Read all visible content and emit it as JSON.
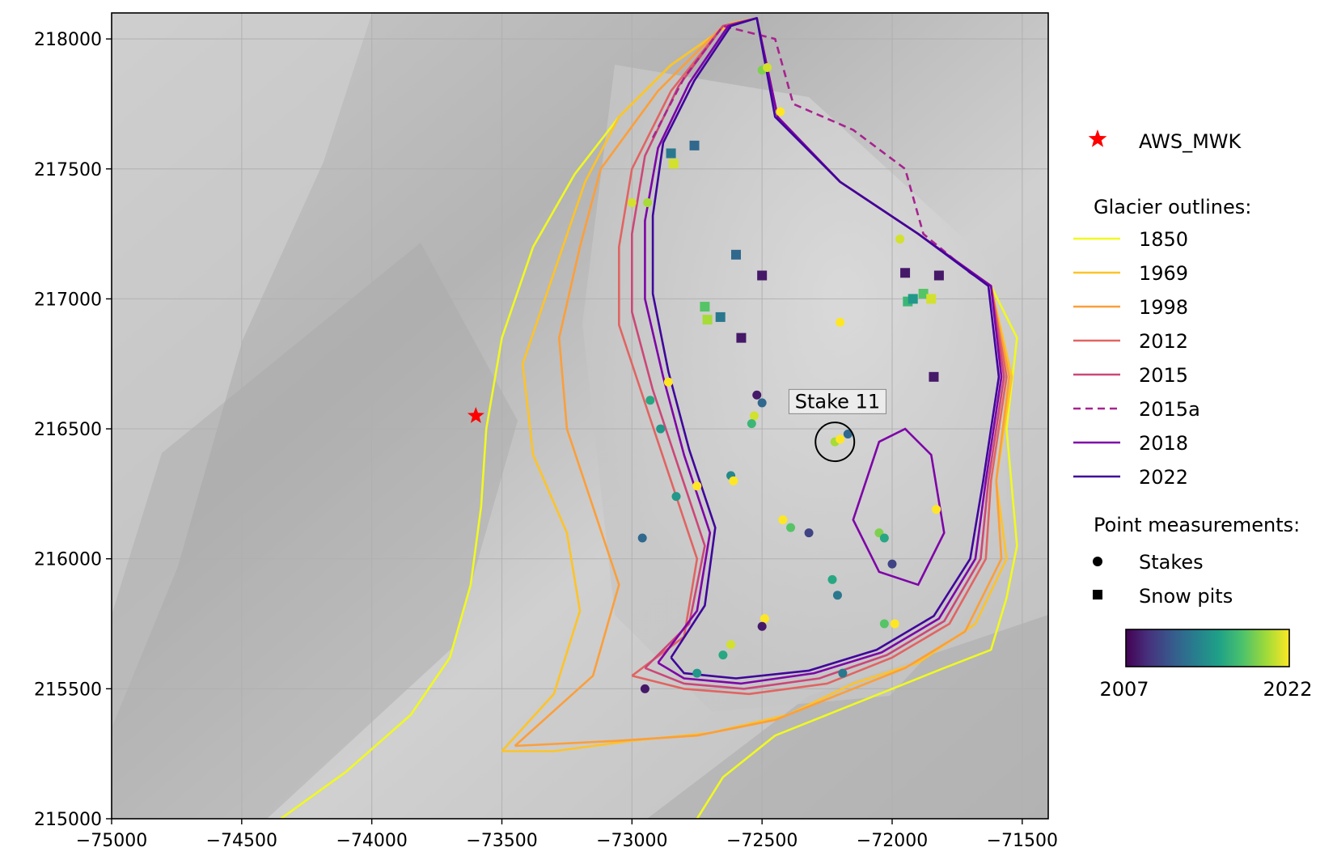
{
  "chart_data": {
    "type": "map",
    "xlim": [
      -75000,
      -71400
    ],
    "ylim": [
      215000,
      218100
    ],
    "x_ticks": [
      -75000,
      -74500,
      -74000,
      -73500,
      -73000,
      -72500,
      -72000,
      -71500
    ],
    "x_tick_labels": [
      "−75000",
      "−74500",
      "−74000",
      "−73500",
      "−73000",
      "−72500",
      "−72000",
      "−71500"
    ],
    "y_ticks": [
      215000,
      215500,
      216000,
      216500,
      217000,
      217500,
      218000
    ],
    "y_tick_labels": [
      "215000",
      "215500",
      "216000",
      "216500",
      "217000",
      "217500",
      "218000"
    ],
    "grid": true,
    "background": "grayscale hillshade relief",
    "aws": {
      "label": "AWS_MWK",
      "x": -73600,
      "y": 216550,
      "color": "#ff0000",
      "icon": "star-icon"
    },
    "annotation": {
      "text": "Stake 11",
      "x": -72220,
      "y": 216450,
      "label_x": -72210,
      "label_y": 216580
    },
    "legend_titles": {
      "outlines": "Glacier outlines:",
      "points": "Point measurements:"
    },
    "outlines": [
      {
        "name": "1850",
        "color": "#f0f921",
        "dash": false,
        "points": [
          [
            -74350,
            215000
          ],
          [
            -74100,
            215180
          ],
          [
            -73850,
            215400
          ],
          [
            -73700,
            215620
          ],
          [
            -73620,
            215900
          ],
          [
            -73580,
            216200
          ],
          [
            -73560,
            216500
          ],
          [
            -73500,
            216850
          ],
          [
            -73380,
            217200
          ],
          [
            -73220,
            217480
          ],
          [
            -73050,
            217700
          ],
          [
            -72850,
            217900
          ],
          [
            -72620,
            218060
          ],
          [
            -72520,
            218080
          ],
          [
            -72440,
            217700
          ],
          [
            -72200,
            217450
          ],
          [
            -71900,
            217250
          ],
          [
            -71620,
            217050
          ],
          [
            -71520,
            216850
          ],
          [
            -71560,
            216500
          ],
          [
            -71520,
            216050
          ],
          [
            -71560,
            215850
          ],
          [
            -71620,
            215650
          ],
          [
            -71800,
            215580
          ],
          [
            -72000,
            215500
          ],
          [
            -72200,
            215420
          ],
          [
            -72450,
            215320
          ],
          [
            -72650,
            215160
          ],
          [
            -72750,
            215000
          ]
        ]
      },
      {
        "name": "1969",
        "color": "#fdc328",
        "dash": false,
        "points": [
          [
            -73500,
            215260
          ],
          [
            -73300,
            215480
          ],
          [
            -73200,
            215800
          ],
          [
            -73250,
            216100
          ],
          [
            -73380,
            216400
          ],
          [
            -73420,
            216750
          ],
          [
            -73300,
            217100
          ],
          [
            -73180,
            217450
          ],
          [
            -73050,
            217700
          ],
          [
            -72850,
            217900
          ],
          [
            -72620,
            218060
          ],
          [
            -72520,
            218080
          ],
          [
            -72440,
            217700
          ],
          [
            -72200,
            217450
          ],
          [
            -71900,
            217250
          ],
          [
            -71620,
            217050
          ],
          [
            -71540,
            216700
          ],
          [
            -71600,
            216300
          ],
          [
            -71560,
            216000
          ],
          [
            -71680,
            215750
          ],
          [
            -71900,
            215600
          ],
          [
            -72150,
            215520
          ],
          [
            -72400,
            215400
          ],
          [
            -72700,
            215330
          ],
          [
            -73000,
            215300
          ],
          [
            -73300,
            215260
          ],
          [
            -73500,
            215260
          ]
        ]
      },
      {
        "name": "1998",
        "color": "#fb9f3a",
        "dash": false,
        "points": [
          [
            -73450,
            215280
          ],
          [
            -73150,
            215550
          ],
          [
            -73050,
            215900
          ],
          [
            -73150,
            216200
          ],
          [
            -73250,
            216500
          ],
          [
            -73280,
            216850
          ],
          [
            -73200,
            217200
          ],
          [
            -73120,
            217500
          ],
          [
            -72900,
            217800
          ],
          [
            -72650,
            218050
          ],
          [
            -72520,
            218080
          ],
          [
            -72440,
            217700
          ],
          [
            -72200,
            217450
          ],
          [
            -71900,
            217250
          ],
          [
            -71620,
            217050
          ],
          [
            -71550,
            216700
          ],
          [
            -71600,
            216300
          ],
          [
            -71580,
            216000
          ],
          [
            -71720,
            215720
          ],
          [
            -71950,
            215580
          ],
          [
            -72200,
            215480
          ],
          [
            -72450,
            215380
          ],
          [
            -72750,
            215320
          ],
          [
            -73050,
            215300
          ],
          [
            -73450,
            215280
          ]
        ]
      },
      {
        "name": "2012",
        "color": "#e16462",
        "dash": false,
        "points": [
          [
            -73000,
            215550
          ],
          [
            -72800,
            215700
          ],
          [
            -72750,
            216000
          ],
          [
            -72850,
            216300
          ],
          [
            -72950,
            216600
          ],
          [
            -73050,
            216900
          ],
          [
            -73050,
            217200
          ],
          [
            -73000,
            217500
          ],
          [
            -72850,
            217800
          ],
          [
            -72650,
            218050
          ],
          [
            -72520,
            218080
          ],
          [
            -72440,
            217700
          ],
          [
            -72200,
            217450
          ],
          [
            -71900,
            217250
          ],
          [
            -71620,
            217050
          ],
          [
            -71560,
            216700
          ],
          [
            -71620,
            216300
          ],
          [
            -71640,
            216000
          ],
          [
            -71780,
            215750
          ],
          [
            -72000,
            215620
          ],
          [
            -72250,
            215520
          ],
          [
            -72550,
            215480
          ],
          [
            -72800,
            215500
          ],
          [
            -73000,
            215550
          ]
        ]
      },
      {
        "name": "2015",
        "color": "#cc4778",
        "dash": false,
        "points": [
          [
            -72950,
            215580
          ],
          [
            -72780,
            215750
          ],
          [
            -72720,
            216050
          ],
          [
            -72820,
            216350
          ],
          [
            -72920,
            216650
          ],
          [
            -73000,
            216950
          ],
          [
            -73000,
            217250
          ],
          [
            -72950,
            217550
          ],
          [
            -72820,
            217820
          ],
          [
            -72650,
            218050
          ],
          [
            -72520,
            218080
          ],
          [
            -72440,
            217700
          ],
          [
            -72200,
            217450
          ],
          [
            -71900,
            217250
          ],
          [
            -71620,
            217050
          ],
          [
            -71570,
            216700
          ],
          [
            -71630,
            216300
          ],
          [
            -71660,
            216000
          ],
          [
            -71800,
            215760
          ],
          [
            -72020,
            215630
          ],
          [
            -72280,
            215540
          ],
          [
            -72570,
            215500
          ],
          [
            -72800,
            215520
          ],
          [
            -72950,
            215580
          ]
        ]
      },
      {
        "name": "2015a",
        "color": "#a7238f",
        "dash": true,
        "points": [
          [
            -72920,
            217620
          ],
          [
            -72800,
            217850
          ],
          [
            -72650,
            218050
          ],
          [
            -72450,
            218000
          ],
          [
            -72380,
            217750
          ],
          [
            -72150,
            217650
          ],
          [
            -71950,
            217500
          ],
          [
            -71880,
            217250
          ],
          [
            -71700,
            217100
          ],
          [
            -71620,
            217050
          ]
        ]
      },
      {
        "name": "2018",
        "color": "#7e03a8",
        "dash": false,
        "points": [
          [
            -72900,
            215600
          ],
          [
            -72750,
            215800
          ],
          [
            -72700,
            216100
          ],
          [
            -72800,
            216400
          ],
          [
            -72880,
            216700
          ],
          [
            -72950,
            217000
          ],
          [
            -72950,
            217300
          ],
          [
            -72900,
            217580
          ],
          [
            -72780,
            217830
          ],
          [
            -72630,
            218050
          ],
          [
            -72520,
            218080
          ],
          [
            -72440,
            217700
          ],
          [
            -72200,
            217450
          ],
          [
            -71900,
            217250
          ],
          [
            -71620,
            217050
          ],
          [
            -71580,
            216700
          ],
          [
            -71640,
            216300
          ],
          [
            -71680,
            216000
          ],
          [
            -71820,
            215770
          ],
          [
            -72040,
            215640
          ],
          [
            -72300,
            215560
          ],
          [
            -72580,
            215520
          ],
          [
            -72800,
            215540
          ],
          [
            -72900,
            215600
          ]
        ]
      },
      {
        "name": "2022",
        "color": "#3f049c",
        "dash": false,
        "points": [
          [
            -72850,
            215620
          ],
          [
            -72720,
            215820
          ],
          [
            -72680,
            216120
          ],
          [
            -72780,
            216420
          ],
          [
            -72860,
            216720
          ],
          [
            -72920,
            217020
          ],
          [
            -72920,
            217320
          ],
          [
            -72880,
            217600
          ],
          [
            -72760,
            217840
          ],
          [
            -72620,
            218050
          ],
          [
            -72520,
            218080
          ],
          [
            -72450,
            217700
          ],
          [
            -72200,
            217450
          ],
          [
            -71900,
            217250
          ],
          [
            -71630,
            217050
          ],
          [
            -71590,
            216700
          ],
          [
            -71650,
            216300
          ],
          [
            -71700,
            216000
          ],
          [
            -71840,
            215780
          ],
          [
            -72060,
            215650
          ],
          [
            -72320,
            215570
          ],
          [
            -72600,
            215540
          ],
          [
            -72800,
            215560
          ],
          [
            -72850,
            215620
          ]
        ]
      }
    ],
    "nunatak_outline": {
      "color": "#7e03a8",
      "points": [
        [
          -72150,
          216150
        ],
        [
          -72050,
          216450
        ],
        [
          -71950,
          216500
        ],
        [
          -71850,
          216400
        ],
        [
          -71800,
          216100
        ],
        [
          -71900,
          215900
        ],
        [
          -72050,
          215950
        ],
        [
          -72150,
          216150
        ]
      ]
    },
    "points_legend": [
      {
        "label": "Stakes",
        "marker": "circle"
      },
      {
        "label": "Snow pits",
        "marker": "square"
      }
    ],
    "colorbar": {
      "min_label": "2007",
      "max_label": "2022",
      "colormap": "viridis"
    },
    "stakes": [
      {
        "x": -72500,
        "y": 217880,
        "year": 2019
      },
      {
        "x": -72480,
        "y": 217890,
        "year": 2021
      },
      {
        "x": -72430,
        "y": 217720,
        "year": 2022
      },
      {
        "x": -73000,
        "y": 217370,
        "year": 2021
      },
      {
        "x": -72940,
        "y": 217370,
        "year": 2020
      },
      {
        "x": -71970,
        "y": 217230,
        "year": 2021
      },
      {
        "x": -72200,
        "y": 216910,
        "year": 2022
      },
      {
        "x": -72860,
        "y": 216680,
        "year": 2022
      },
      {
        "x": -72930,
        "y": 216610,
        "year": 2016
      },
      {
        "x": -72520,
        "y": 216630,
        "year": 2008
      },
      {
        "x": -72500,
        "y": 216600,
        "year": 2012
      },
      {
        "x": -72530,
        "y": 216550,
        "year": 2021
      },
      {
        "x": -72540,
        "y": 216520,
        "year": 2017
      },
      {
        "x": -72890,
        "y": 216500,
        "year": 2015
      },
      {
        "x": -72220,
        "y": 216450,
        "year": 2020
      },
      {
        "x": -72200,
        "y": 216460,
        "year": 2022
      },
      {
        "x": -72170,
        "y": 216480,
        "year": 2012
      },
      {
        "x": -72620,
        "y": 216320,
        "year": 2014
      },
      {
        "x": -72610,
        "y": 216300,
        "year": 2022
      },
      {
        "x": -72750,
        "y": 216280,
        "year": 2022
      },
      {
        "x": -72830,
        "y": 216240,
        "year": 2015
      },
      {
        "x": -72420,
        "y": 216150,
        "year": 2022
      },
      {
        "x": -72390,
        "y": 216120,
        "year": 2018
      },
      {
        "x": -72320,
        "y": 216100,
        "year": 2010
      },
      {
        "x": -72050,
        "y": 216100,
        "year": 2019
      },
      {
        "x": -72030,
        "y": 216080,
        "year": 2016
      },
      {
        "x": -71830,
        "y": 216190,
        "year": 2022
      },
      {
        "x": -72000,
        "y": 215980,
        "year": 2010
      },
      {
        "x": -72230,
        "y": 215920,
        "year": 2016
      },
      {
        "x": -72210,
        "y": 215860,
        "year": 2013
      },
      {
        "x": -72490,
        "y": 215770,
        "year": 2022
      },
      {
        "x": -72500,
        "y": 215740,
        "year": 2008
      },
      {
        "x": -72030,
        "y": 215750,
        "year": 2018
      },
      {
        "x": -71990,
        "y": 215750,
        "year": 2022
      },
      {
        "x": -72620,
        "y": 215670,
        "year": 2021
      },
      {
        "x": -72650,
        "y": 215630,
        "year": 2016
      },
      {
        "x": -72950,
        "y": 215500,
        "year": 2008
      },
      {
        "x": -72750,
        "y": 215560,
        "year": 2015
      },
      {
        "x": -72190,
        "y": 215560,
        "year": 2013
      },
      {
        "x": -72960,
        "y": 216080,
        "year": 2012
      }
    ],
    "snow_pits": [
      {
        "x": -72850,
        "y": 217560,
        "year": 2013
      },
      {
        "x": -72840,
        "y": 217520,
        "year": 2021
      },
      {
        "x": -72760,
        "y": 217590,
        "year": 2012
      },
      {
        "x": -72600,
        "y": 217170,
        "year": 2012
      },
      {
        "x": -72500,
        "y": 217090,
        "year": 2008
      },
      {
        "x": -71950,
        "y": 217100,
        "year": 2008
      },
      {
        "x": -71820,
        "y": 217090,
        "year": 2008
      },
      {
        "x": -72720,
        "y": 216970,
        "year": 2018
      },
      {
        "x": -72710,
        "y": 216920,
        "year": 2020
      },
      {
        "x": -72660,
        "y": 216930,
        "year": 2013
      },
      {
        "x": -71940,
        "y": 216990,
        "year": 2017
      },
      {
        "x": -71920,
        "y": 217000,
        "year": 2015
      },
      {
        "x": -71880,
        "y": 217020,
        "year": 2018
      },
      {
        "x": -71850,
        "y": 217000,
        "year": 2021
      },
      {
        "x": -72580,
        "y": 216850,
        "year": 2008
      },
      {
        "x": -71840,
        "y": 216700,
        "year": 2008
      }
    ]
  }
}
